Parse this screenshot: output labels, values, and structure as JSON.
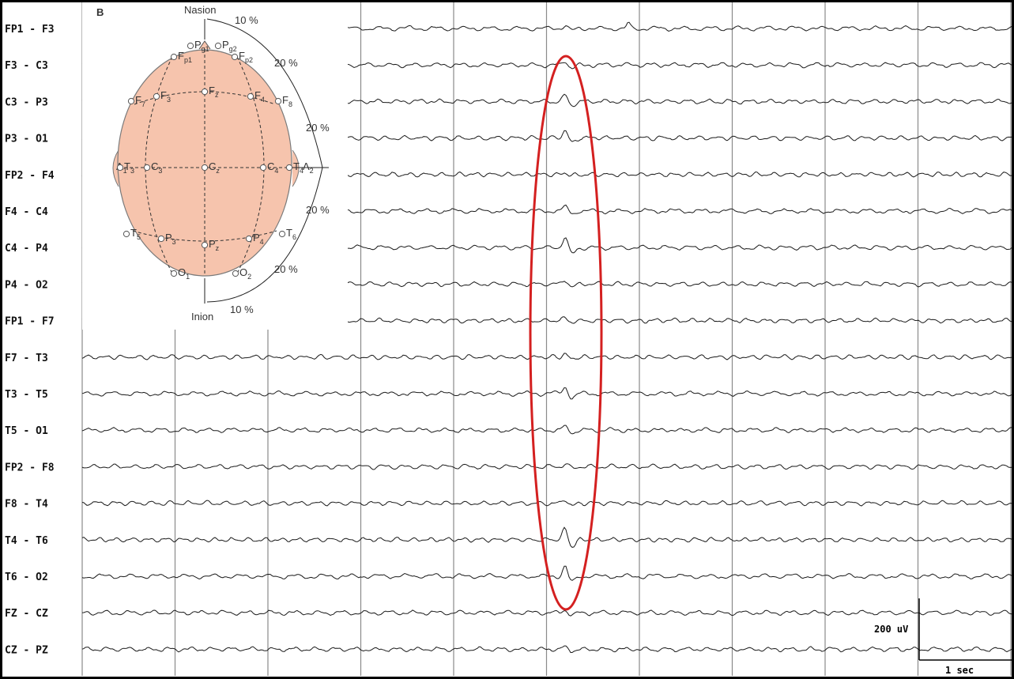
{
  "chart_data": {
    "type": "line",
    "title": "",
    "xlabel": "",
    "ylabel": "",
    "grid": true,
    "seconds_shown": 10,
    "channels": [
      "FP1 - F3",
      "F3 - C3",
      "C3 - P3",
      "P3 - O1",
      "FP2 - F4",
      "F4 - C4",
      "C4 - P4",
      "P4 - O2",
      "FP1 - F7",
      "F7 - T3",
      "T3 - T5",
      "T5 - O1",
      "FP2 - F8",
      "F8 - T4",
      "T4 - T6",
      "T6 - O2",
      "FZ - CZ",
      "CZ - PZ"
    ],
    "spike_time_sec": 5.2,
    "spike_channels_highlighted": "all",
    "highlight": {
      "shape": "ellipse",
      "color": "#d42020"
    },
    "scale": {
      "amplitude_label": "200 uV",
      "time_label": "1 sec"
    }
  },
  "inset": {
    "panel_label": "B",
    "top_label": "Nasion",
    "bottom_label": "Inion",
    "percent_labels": [
      "10 %",
      "20 %",
      "20 %",
      "20 %",
      "20 %",
      "10 %"
    ],
    "electrodes": [
      "Pg1",
      "Pg2",
      "Fp1",
      "Fp2",
      "F7",
      "F3",
      "Fz",
      "F4",
      "F8",
      "A1",
      "T3",
      "C3",
      "Cz",
      "C4",
      "T4",
      "A2",
      "T5",
      "P3",
      "Pz",
      "P4",
      "T6",
      "O1",
      "O2"
    ],
    "head_color": "#f6c4ad"
  }
}
